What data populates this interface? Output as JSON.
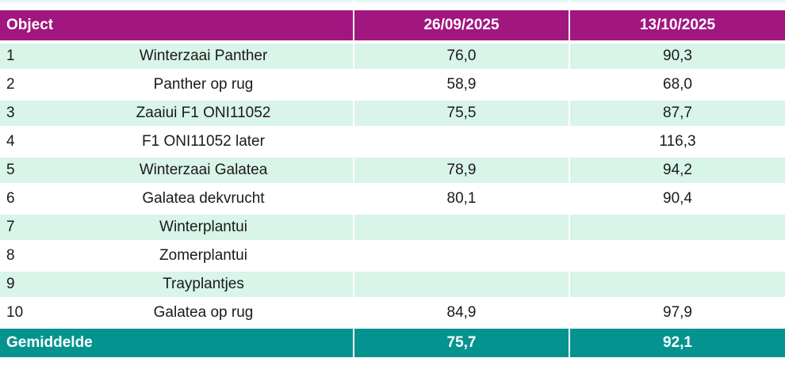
{
  "colors": {
    "header_bg": "#A2167F",
    "footer_bg": "#059390",
    "row_alt_bg": "#D9F4E8",
    "row_bg": "#FFFFFF",
    "header_text": "#FFFFFF",
    "body_text": "#1A1A1A"
  },
  "table": {
    "header": {
      "object": "Object",
      "date1": "26/09/2025",
      "date2": "13/10/2025"
    },
    "rows": [
      {
        "num": "1",
        "name": "Winterzaai Panther",
        "v1": "76,0",
        "v2": "90,3"
      },
      {
        "num": "2",
        "name": "Panther op rug",
        "v1": "58,9",
        "v2": "68,0"
      },
      {
        "num": "3",
        "name": "Zaaiui F1 ONI11052",
        "v1": "75,5",
        "v2": "87,7"
      },
      {
        "num": "4",
        "name": "F1 ONI11052 later",
        "v1": "",
        "v2": "116,3"
      },
      {
        "num": "5",
        "name": "Winterzaai Galatea",
        "v1": "78,9",
        "v2": "94,2"
      },
      {
        "num": "6",
        "name": "Galatea dekvrucht",
        "v1": "80,1",
        "v2": "90,4"
      },
      {
        "num": "7",
        "name": "Winterplantui",
        "v1": "",
        "v2": ""
      },
      {
        "num": "8",
        "name": "Zomerplantui",
        "v1": "",
        "v2": ""
      },
      {
        "num": "9",
        "name": "Trayplantjes",
        "v1": "",
        "v2": ""
      },
      {
        "num": "10",
        "name": "Galatea op rug",
        "v1": "84,9",
        "v2": "97,9"
      }
    ],
    "footer": {
      "label": "Gemiddelde",
      "v1": "75,7",
      "v2": "92,1"
    }
  },
  "chart_data": {
    "type": "table",
    "title": "",
    "columns": [
      "Object nr",
      "Object",
      "26/09/2025",
      "13/10/2025"
    ],
    "rows": [
      [
        "1",
        "Winterzaai Panther",
        76.0,
        90.3
      ],
      [
        "2",
        "Panther op rug",
        58.9,
        68.0
      ],
      [
        "3",
        "Zaaiui F1 ONI11052",
        75.5,
        87.7
      ],
      [
        "4",
        "F1 ONI11052 later",
        null,
        116.3
      ],
      [
        "5",
        "Winterzaai Galatea",
        78.9,
        94.2
      ],
      [
        "6",
        "Galatea dekvrucht",
        80.1,
        90.4
      ],
      [
        "7",
        "Winterplantui",
        null,
        null
      ],
      [
        "8",
        "Zomerplantui",
        null,
        null
      ],
      [
        "9",
        "Trayplantjes",
        null,
        null
      ],
      [
        "10",
        "Galatea op rug",
        84.9,
        97.9
      ]
    ],
    "summary_row": [
      "Gemiddelde",
      "",
      75.7,
      92.1
    ],
    "decimal_separator": ",",
    "layout": {
      "alternating_row_colors": true,
      "header_position": "top",
      "summary_position": "bottom"
    }
  }
}
